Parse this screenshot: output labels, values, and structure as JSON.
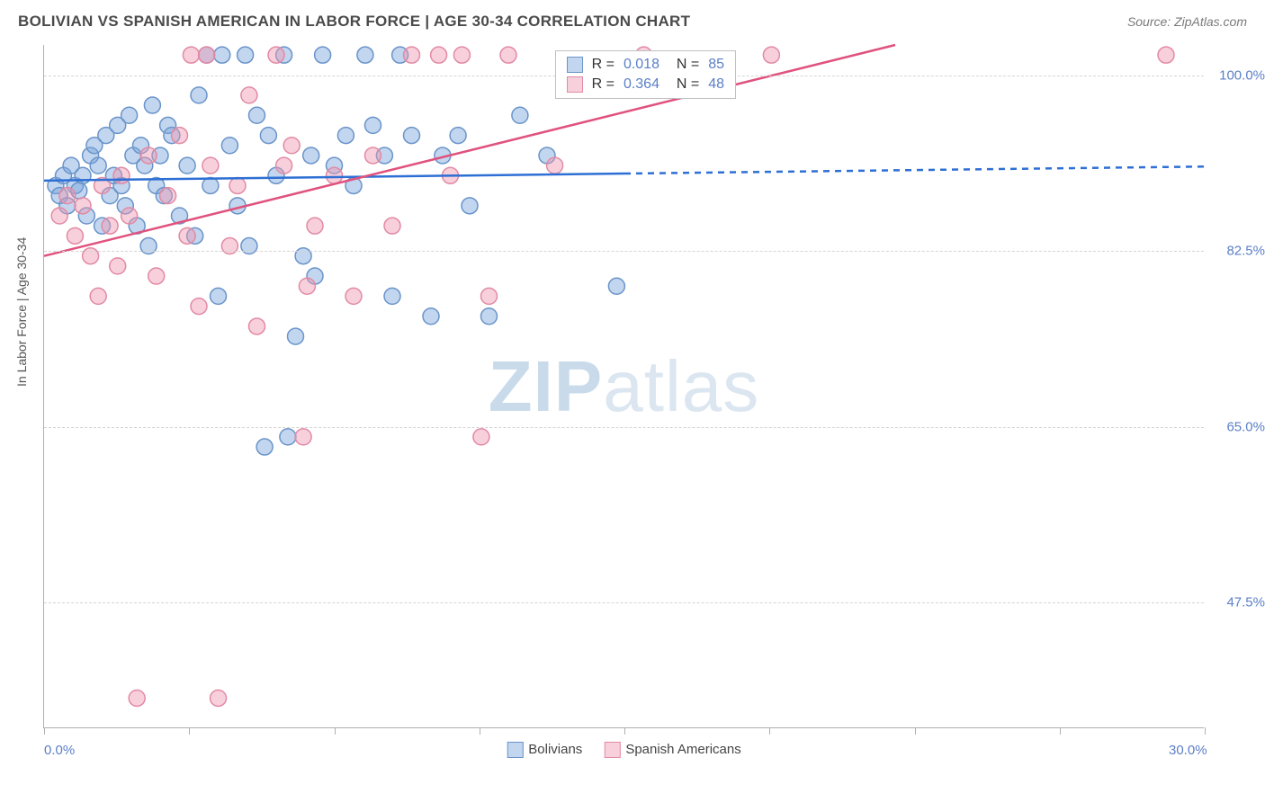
{
  "title": "BOLIVIAN VS SPANISH AMERICAN IN LABOR FORCE | AGE 30-34 CORRELATION CHART",
  "source": "Source: ZipAtlas.com",
  "y_axis_label": "In Labor Force | Age 30-34",
  "watermark_bold": "ZIP",
  "watermark_light": "atlas",
  "chart": {
    "type": "scatter",
    "x_range": [
      0,
      30
    ],
    "y_range": [
      35,
      103
    ],
    "y_ticks": [
      47.5,
      65.0,
      82.5,
      100.0
    ],
    "y_tick_labels": [
      "47.5%",
      "65.0%",
      "82.5%",
      "100.0%"
    ],
    "x_ticks": [
      0,
      3.75,
      7.5,
      11.25,
      15,
      18.75,
      22.5,
      26.25,
      30
    ],
    "x_tick_labels": {
      "0": "0.0%",
      "30": "30.0%"
    },
    "series": [
      {
        "name": "Bolivians",
        "color_fill": "rgba(120,165,220,0.45)",
        "color_stroke": "#6a94c9",
        "r_value": "0.018",
        "n_value": "85",
        "trend": {
          "x1": 0,
          "y1": 89.5,
          "x2_solid": 15,
          "y2_solid": 90.2,
          "x2_dash": 30,
          "y2_dash": 90.9,
          "color": "#2d6fd4",
          "width": 2.5
        },
        "points": [
          [
            0.3,
            89
          ],
          [
            0.4,
            88
          ],
          [
            0.5,
            90
          ],
          [
            0.6,
            87
          ],
          [
            0.7,
            91
          ],
          [
            0.8,
            89
          ],
          [
            0.9,
            88.5
          ],
          [
            1.0,
            90
          ],
          [
            1.1,
            86
          ],
          [
            1.2,
            92
          ],
          [
            1.3,
            93
          ],
          [
            1.4,
            91
          ],
          [
            1.5,
            85
          ],
          [
            1.6,
            94
          ],
          [
            1.7,
            88
          ],
          [
            1.8,
            90
          ],
          [
            1.9,
            95
          ],
          [
            2.0,
            89
          ],
          [
            2.1,
            87
          ],
          [
            2.2,
            96
          ],
          [
            2.3,
            92
          ],
          [
            2.4,
            85
          ],
          [
            2.5,
            93
          ],
          [
            2.6,
            91
          ],
          [
            2.7,
            83
          ],
          [
            2.8,
            97
          ],
          [
            2.9,
            89
          ],
          [
            3.0,
            92
          ],
          [
            3.1,
            88
          ],
          [
            3.2,
            95
          ],
          [
            3.3,
            94
          ],
          [
            3.5,
            86
          ],
          [
            3.7,
            91
          ],
          [
            3.9,
            84
          ],
          [
            4.0,
            98
          ],
          [
            4.2,
            102
          ],
          [
            4.3,
            89
          ],
          [
            4.5,
            78
          ],
          [
            4.6,
            102
          ],
          [
            4.8,
            93
          ],
          [
            5.0,
            87
          ],
          [
            5.2,
            102
          ],
          [
            5.3,
            83
          ],
          [
            5.5,
            96
          ],
          [
            5.7,
            63
          ],
          [
            5.8,
            94
          ],
          [
            6.0,
            90
          ],
          [
            6.2,
            102
          ],
          [
            6.5,
            74
          ],
          [
            6.3,
            64
          ],
          [
            6.7,
            82
          ],
          [
            6.9,
            92
          ],
          [
            7.0,
            80
          ],
          [
            7.2,
            102
          ],
          [
            7.5,
            91
          ],
          [
            7.8,
            94
          ],
          [
            8.0,
            89
          ],
          [
            8.3,
            102
          ],
          [
            8.5,
            95
          ],
          [
            8.8,
            92
          ],
          [
            9.0,
            78
          ],
          [
            9.2,
            102
          ],
          [
            9.5,
            94
          ],
          [
            10.0,
            76
          ],
          [
            10.3,
            92
          ],
          [
            10.7,
            94
          ],
          [
            11.0,
            87
          ],
          [
            11.5,
            76
          ],
          [
            12.3,
            96
          ],
          [
            13.0,
            92
          ],
          [
            14.8,
            79
          ]
        ]
      },
      {
        "name": "Spanish Americans",
        "color_fill": "rgba(240,150,175,0.45)",
        "color_stroke": "#e28aa5",
        "r_value": "0.364",
        "n_value": "48",
        "trend": {
          "x1": 0,
          "y1": 82,
          "x2_solid": 22,
          "y2_solid": 103,
          "color": "#e0527e",
          "width": 2.5
        },
        "points": [
          [
            0.4,
            86
          ],
          [
            0.6,
            88
          ],
          [
            0.8,
            84
          ],
          [
            1.0,
            87
          ],
          [
            1.2,
            82
          ],
          [
            1.4,
            78
          ],
          [
            1.5,
            89
          ],
          [
            1.7,
            85
          ],
          [
            1.9,
            81
          ],
          [
            2.0,
            90
          ],
          [
            2.2,
            86
          ],
          [
            2.4,
            38
          ],
          [
            2.7,
            92
          ],
          [
            2.9,
            80
          ],
          [
            3.2,
            88
          ],
          [
            3.5,
            94
          ],
          [
            3.7,
            84
          ],
          [
            3.8,
            102
          ],
          [
            4.0,
            77
          ],
          [
            4.2,
            102
          ],
          [
            4.3,
            91
          ],
          [
            4.5,
            38
          ],
          [
            4.8,
            83
          ],
          [
            5.0,
            89
          ],
          [
            5.3,
            98
          ],
          [
            5.5,
            75
          ],
          [
            6.0,
            102
          ],
          [
            6.2,
            91
          ],
          [
            6.4,
            93
          ],
          [
            6.7,
            64
          ],
          [
            6.8,
            79
          ],
          [
            7.0,
            85
          ],
          [
            7.5,
            90
          ],
          [
            8.0,
            78
          ],
          [
            8.5,
            92
          ],
          [
            9.0,
            85
          ],
          [
            9.5,
            102
          ],
          [
            10.2,
            102
          ],
          [
            10.5,
            90
          ],
          [
            10.8,
            102
          ],
          [
            11.3,
            64
          ],
          [
            11.5,
            78
          ],
          [
            12.0,
            102
          ],
          [
            13.2,
            91
          ],
          [
            15.5,
            102
          ],
          [
            18.8,
            102
          ],
          [
            29.0,
            102
          ]
        ]
      }
    ]
  },
  "legend_bottom": [
    {
      "label": "Bolivians",
      "fill": "rgba(120,165,220,0.45)",
      "stroke": "#6a94c9"
    },
    {
      "label": "Spanish Americans",
      "fill": "rgba(240,150,175,0.45)",
      "stroke": "#e28aa5"
    }
  ],
  "colors": {
    "title": "#4a4a4a",
    "axis": "#b0b0b0",
    "grid": "#d5d5d5",
    "tick_label": "#5b7fc7"
  },
  "marker_radius": 9
}
